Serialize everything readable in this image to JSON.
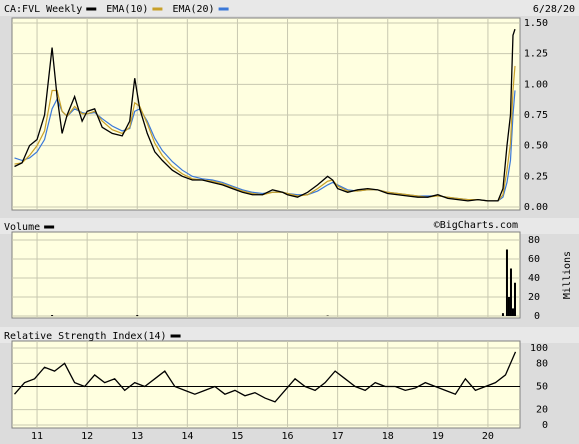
{
  "chart_data": [
    {
      "type": "line",
      "title": "CA:FVL Weekly",
      "date": "6/28/20",
      "x": [
        2010.55,
        2010.7,
        2010.85,
        2011.0,
        2011.15,
        2011.3,
        2011.4,
        2011.5,
        2011.6,
        2011.75,
        2011.9,
        2012.0,
        2012.15,
        2012.3,
        2012.5,
        2012.7,
        2012.85,
        2012.95,
        2013.05,
        2013.2,
        2013.35,
        2013.5,
        2013.7,
        2013.9,
        2014.1,
        2014.3,
        2014.5,
        2014.7,
        2014.9,
        2015.1,
        2015.3,
        2015.5,
        2015.7,
        2015.9,
        2016.0,
        2016.2,
        2016.4,
        2016.6,
        2016.8,
        2016.9,
        2017.0,
        2017.2,
        2017.4,
        2017.6,
        2017.8,
        2018.0,
        2018.2,
        2018.4,
        2018.6,
        2018.8,
        2019.0,
        2019.2,
        2019.4,
        2019.6,
        2019.8,
        2020.0,
        2020.2,
        2020.3,
        2020.38,
        2020.45,
        2020.5,
        2020.54
      ],
      "series": [
        {
          "name": "CA:FVL Weekly",
          "color": "#000000",
          "values": [
            0.33,
            0.36,
            0.5,
            0.55,
            0.75,
            1.3,
            0.9,
            0.6,
            0.75,
            0.9,
            0.7,
            0.78,
            0.8,
            0.65,
            0.6,
            0.58,
            0.7,
            1.05,
            0.8,
            0.6,
            0.45,
            0.38,
            0.3,
            0.25,
            0.22,
            0.22,
            0.2,
            0.18,
            0.15,
            0.12,
            0.1,
            0.1,
            0.14,
            0.12,
            0.1,
            0.08,
            0.12,
            0.18,
            0.25,
            0.22,
            0.15,
            0.12,
            0.14,
            0.15,
            0.14,
            0.11,
            0.1,
            0.09,
            0.08,
            0.08,
            0.1,
            0.07,
            0.06,
            0.05,
            0.06,
            0.05,
            0.05,
            0.15,
            0.5,
            0.75,
            1.4,
            1.45
          ]
        },
        {
          "name": "EMA(10)",
          "color": "#c8a028",
          "values": [
            0.35,
            0.36,
            0.42,
            0.5,
            0.62,
            0.95,
            0.95,
            0.78,
            0.74,
            0.82,
            0.76,
            0.76,
            0.78,
            0.7,
            0.63,
            0.6,
            0.65,
            0.85,
            0.82,
            0.68,
            0.52,
            0.42,
            0.33,
            0.27,
            0.23,
            0.22,
            0.21,
            0.19,
            0.16,
            0.13,
            0.11,
            0.1,
            0.12,
            0.12,
            0.11,
            0.09,
            0.1,
            0.15,
            0.21,
            0.22,
            0.17,
            0.13,
            0.13,
            0.14,
            0.14,
            0.12,
            0.11,
            0.1,
            0.09,
            0.08,
            0.09,
            0.08,
            0.07,
            0.06,
            0.06,
            0.05,
            0.05,
            0.1,
            0.3,
            0.52,
            0.95,
            1.15
          ]
        },
        {
          "name": "EMA(20)",
          "color": "#3a78d8",
          "values": [
            0.4,
            0.38,
            0.4,
            0.45,
            0.55,
            0.8,
            0.88,
            0.78,
            0.74,
            0.8,
            0.77,
            0.76,
            0.77,
            0.72,
            0.66,
            0.62,
            0.64,
            0.78,
            0.8,
            0.7,
            0.56,
            0.46,
            0.37,
            0.3,
            0.25,
            0.23,
            0.22,
            0.2,
            0.17,
            0.14,
            0.12,
            0.11,
            0.12,
            0.12,
            0.11,
            0.1,
            0.1,
            0.13,
            0.18,
            0.2,
            0.18,
            0.14,
            0.13,
            0.14,
            0.14,
            0.12,
            0.11,
            0.1,
            0.09,
            0.09,
            0.09,
            0.08,
            0.07,
            0.06,
            0.06,
            0.05,
            0.05,
            0.08,
            0.2,
            0.38,
            0.75,
            0.95
          ]
        }
      ],
      "xlim": [
        2010.5,
        2020.64
      ],
      "ylim": [
        0,
        1.5
      ],
      "yticks": [
        {
          "value": 0,
          "label": "0.00"
        },
        {
          "value": 0.25,
          "label": "0.25"
        },
        {
          "value": 0.5,
          "label": "0.50"
        },
        {
          "value": 0.75,
          "label": "0.75"
        },
        {
          "value": 1,
          "label": "1.00"
        },
        {
          "value": 1.25,
          "label": "1.25"
        },
        {
          "value": 1.5,
          "label": "1.50"
        }
      ],
      "grid": true
    },
    {
      "type": "bar",
      "credit": "©BigCharts.com",
      "y_label": "Millions",
      "x": [
        2011.3,
        2013.0,
        2016.8,
        2020.3,
        2020.38,
        2020.42,
        2020.46,
        2020.5,
        2020.54
      ],
      "series": [
        {
          "name": "Volume",
          "color": "#000000",
          "values": [
            1,
            1,
            0.5,
            3,
            70,
            20,
            50,
            8,
            35
          ]
        }
      ],
      "xlim": [
        2010.5,
        2020.64
      ],
      "ylim": [
        0,
        80
      ],
      "yticks": [
        0,
        20,
        40,
        60,
        80
      ],
      "grid": true
    },
    {
      "type": "line",
      "x": [
        2010.55,
        2010.75,
        2010.95,
        2011.15,
        2011.35,
        2011.55,
        2011.75,
        2011.95,
        2012.15,
        2012.35,
        2012.55,
        2012.75,
        2012.95,
        2013.15,
        2013.35,
        2013.55,
        2013.75,
        2013.95,
        2014.15,
        2014.35,
        2014.55,
        2014.75,
        2014.95,
        2015.15,
        2015.35,
        2015.55,
        2015.75,
        2015.95,
        2016.15,
        2016.35,
        2016.55,
        2016.75,
        2016.95,
        2017.15,
        2017.35,
        2017.55,
        2017.75,
        2017.95,
        2018.15,
        2018.35,
        2018.55,
        2018.75,
        2018.95,
        2019.15,
        2019.35,
        2019.55,
        2019.75,
        2019.95,
        2020.15,
        2020.35,
        2020.55
      ],
      "series": [
        {
          "name": "Relative Strength Index(14)",
          "color": "#000000",
          "values": [
            40,
            55,
            60,
            75,
            70,
            80,
            55,
            50,
            65,
            55,
            60,
            45,
            55,
            50,
            60,
            70,
            50,
            45,
            40,
            45,
            50,
            40,
            45,
            38,
            42,
            35,
            30,
            45,
            60,
            50,
            45,
            55,
            70,
            60,
            50,
            45,
            55,
            50,
            50,
            45,
            48,
            55,
            50,
            45,
            40,
            60,
            45,
            50,
            55,
            65,
            95
          ]
        }
      ],
      "xlim": [
        2010.5,
        2020.64
      ],
      "ylim": [
        0,
        100
      ],
      "yticks": [
        0,
        20,
        50,
        80,
        100
      ],
      "hline": 50,
      "xticks": [
        {
          "value": 2011,
          "label": "11"
        },
        {
          "value": 2012,
          "label": "12"
        },
        {
          "value": 2013,
          "label": "13"
        },
        {
          "value": 2014,
          "label": "14"
        },
        {
          "value": 2015,
          "label": "15"
        },
        {
          "value": 2016,
          "label": "16"
        },
        {
          "value": 2017,
          "label": "17"
        },
        {
          "value": 2018,
          "label": "18"
        },
        {
          "value": 2019,
          "label": "19"
        },
        {
          "value": 2020,
          "label": "20"
        }
      ],
      "grid": true
    }
  ]
}
